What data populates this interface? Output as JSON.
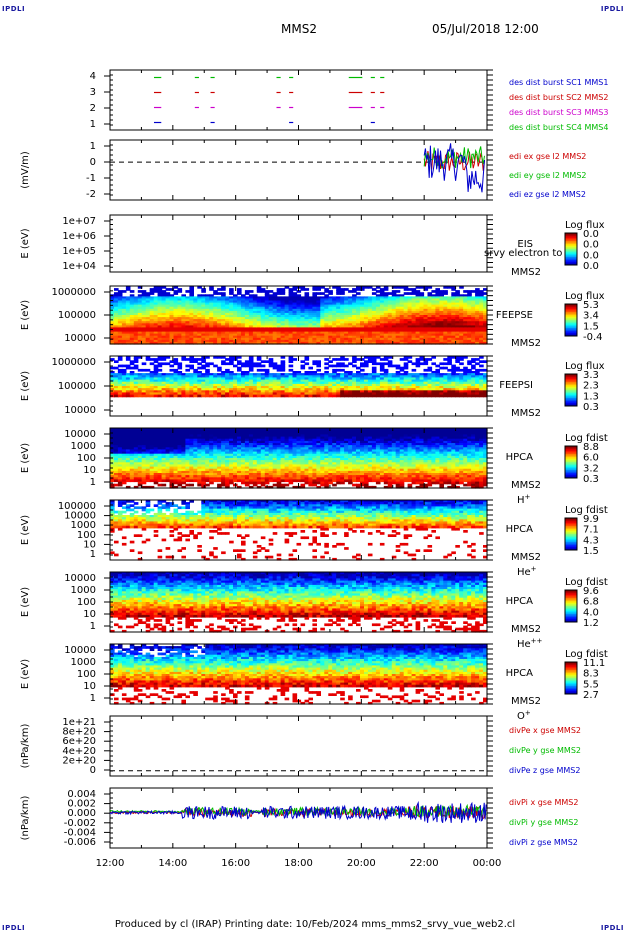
{
  "header": {
    "mission": "MMS2",
    "datetime": "05/Jul/2018 12:00",
    "corner_label": "IPDLI"
  },
  "footer": {
    "text": "Produced by cl (IRAP)   Printing date: 10/Feb/2024   mms_mms2_srvy_vue_web2.cl"
  },
  "time_axis": {
    "ticks": [
      "12:00",
      "14:00",
      "16:00",
      "18:00",
      "20:00",
      "22:00",
      "00:00"
    ]
  },
  "chart_data": [
    {
      "type": "scatter",
      "id": "burst",
      "ylim": [
        0.5,
        4.5
      ],
      "yticks": [
        "4",
        "3",
        "2",
        "1"
      ],
      "legend": [
        {
          "label": "des dist burst SC1 MMS1",
          "color": "#0000cc"
        },
        {
          "label": "des dist burst SC2 MMS2",
          "color": "#cc0000"
        },
        {
          "label": "des dist burst SC3 MMS3",
          "color": "#cc00cc"
        },
        {
          "label": "des dist burst SC4 MMS4",
          "color": "#00bb00"
        }
      ],
      "intervals_hours": [
        [
          13.4,
          13.6
        ],
        [
          14.7,
          14.8
        ],
        [
          15.2,
          15.3
        ],
        [
          17.3,
          17.4
        ],
        [
          17.7,
          17.8
        ],
        [
          19.6,
          20.0
        ],
        [
          20.3,
          20.4
        ],
        [
          20.6,
          20.7
        ]
      ]
    },
    {
      "type": "line",
      "id": "edi",
      "ylabel": "(mV/m)",
      "ylim": [
        -2.4,
        1.4
      ],
      "yticks": [
        "1",
        "0",
        "-1",
        "-2"
      ],
      "legend": [
        {
          "label": "edi ex gse l2 MMS2",
          "color": "#cc0000"
        },
        {
          "label": "edi ey gse l2 MMS2",
          "color": "#00bb00"
        },
        {
          "label": "edi ez gse l2 MMS2",
          "color": "#0000cc"
        }
      ],
      "data_start_hours": 22.0
    },
    {
      "type": "heatmap",
      "id": "eis",
      "ylabel": "E (eV)",
      "yticks": [
        "1e+07",
        "1e+06",
        "1e+05",
        "1e+04"
      ],
      "right_labels": [
        "EIS",
        "MMS2"
      ],
      "overlay_text": "srvy electron to",
      "colorbar": {
        "title": "Log flux",
        "ticks": [
          "0.0",
          "0.0",
          "0.0",
          "0.0"
        ]
      }
    },
    {
      "type": "heatmap",
      "id": "feepse",
      "ylabel": "E (eV)",
      "yticks": [
        "1000000",
        "100000",
        "10000"
      ],
      "right_labels": [
        "FEEPSE",
        "MMS2"
      ],
      "colorbar": {
        "title": "Log flux",
        "ticks": [
          "5.3",
          "3.4",
          "1.5",
          "-0.4"
        ]
      }
    },
    {
      "type": "heatmap",
      "id": "feepsi",
      "ylabel": "E (eV)",
      "yticks": [
        "1000000",
        "100000",
        "10000"
      ],
      "right_labels": [
        "FEEPSI",
        "MMS2"
      ],
      "colorbar": {
        "title": "Log flux",
        "ticks": [
          "3.3",
          "2.3",
          "1.3",
          "0.3"
        ]
      }
    },
    {
      "type": "heatmap",
      "id": "hpca-h",
      "ylabel": "E (eV)",
      "yticks": [
        "10000",
        "1000",
        "100",
        "10",
        "1"
      ],
      "right_labels": [
        "HPCA",
        "MMS2"
      ],
      "species": "H",
      "species_sup": "+",
      "colorbar": {
        "title": "Log fdist",
        "ticks": [
          "8.8",
          "6.0",
          "3.2",
          "0.3"
        ]
      }
    },
    {
      "type": "heatmap",
      "id": "hpca-he",
      "ylabel": "E (eV)",
      "yticks": [
        "100000",
        "10000",
        "1000",
        "100",
        "10",
        "1"
      ],
      "right_labels": [
        "HPCA",
        "MMS2"
      ],
      "species": "He",
      "species_sup": "+",
      "colorbar": {
        "title": "Log fdist",
        "ticks": [
          "9.9",
          "7.1",
          "4.3",
          "1.5"
        ]
      }
    },
    {
      "type": "heatmap",
      "id": "hpca-hepp",
      "ylabel": "E (eV)",
      "yticks": [
        "10000",
        "1000",
        "100",
        "10",
        "1"
      ],
      "right_labels": [
        "HPCA",
        "MMS2"
      ],
      "species": "He",
      "species_sup": "++",
      "colorbar": {
        "title": "Log fdist",
        "ticks": [
          "9.6",
          "6.8",
          "4.0",
          "1.2"
        ]
      }
    },
    {
      "type": "heatmap",
      "id": "hpca-o",
      "ylabel": "E (eV)",
      "yticks": [
        "10000",
        "1000",
        "100",
        "10",
        "1"
      ],
      "right_labels": [
        "HPCA",
        "MMS2"
      ],
      "species": "O",
      "species_sup": "+",
      "colorbar": {
        "title": "Log fdist",
        "ticks": [
          "11.1",
          "8.3",
          "5.5",
          "2.7"
        ]
      }
    },
    {
      "type": "line",
      "id": "divpe",
      "ylabel": "(nPa/km)",
      "ylim": [
        -1e+20,
        1.05e+21
      ],
      "yticks": [
        "1e+21",
        "8e+20",
        "6e+20",
        "4e+20",
        "2e+20",
        "0"
      ],
      "legend": [
        {
          "label": "divPe x gse MMS2",
          "color": "#cc0000"
        },
        {
          "label": "divPe y gse MMS2",
          "color": "#00bb00"
        },
        {
          "label": "divPe z gse MMS2",
          "color": "#0000cc"
        }
      ]
    },
    {
      "type": "line",
      "id": "divpi",
      "ylabel": "(nPa/km)",
      "ylim": [
        -0.0065,
        0.0045
      ],
      "yticks": [
        "0.004",
        "0.002",
        "0.000",
        "-0.002",
        "-0.004",
        "-0.006"
      ],
      "legend": [
        {
          "label": "divPi x gse MMS2",
          "color": "#cc0000"
        },
        {
          "label": "divPi y gse MMS2",
          "color": "#00bb00"
        },
        {
          "label": "divPi z gse MMS2",
          "color": "#0000cc"
        }
      ]
    }
  ]
}
